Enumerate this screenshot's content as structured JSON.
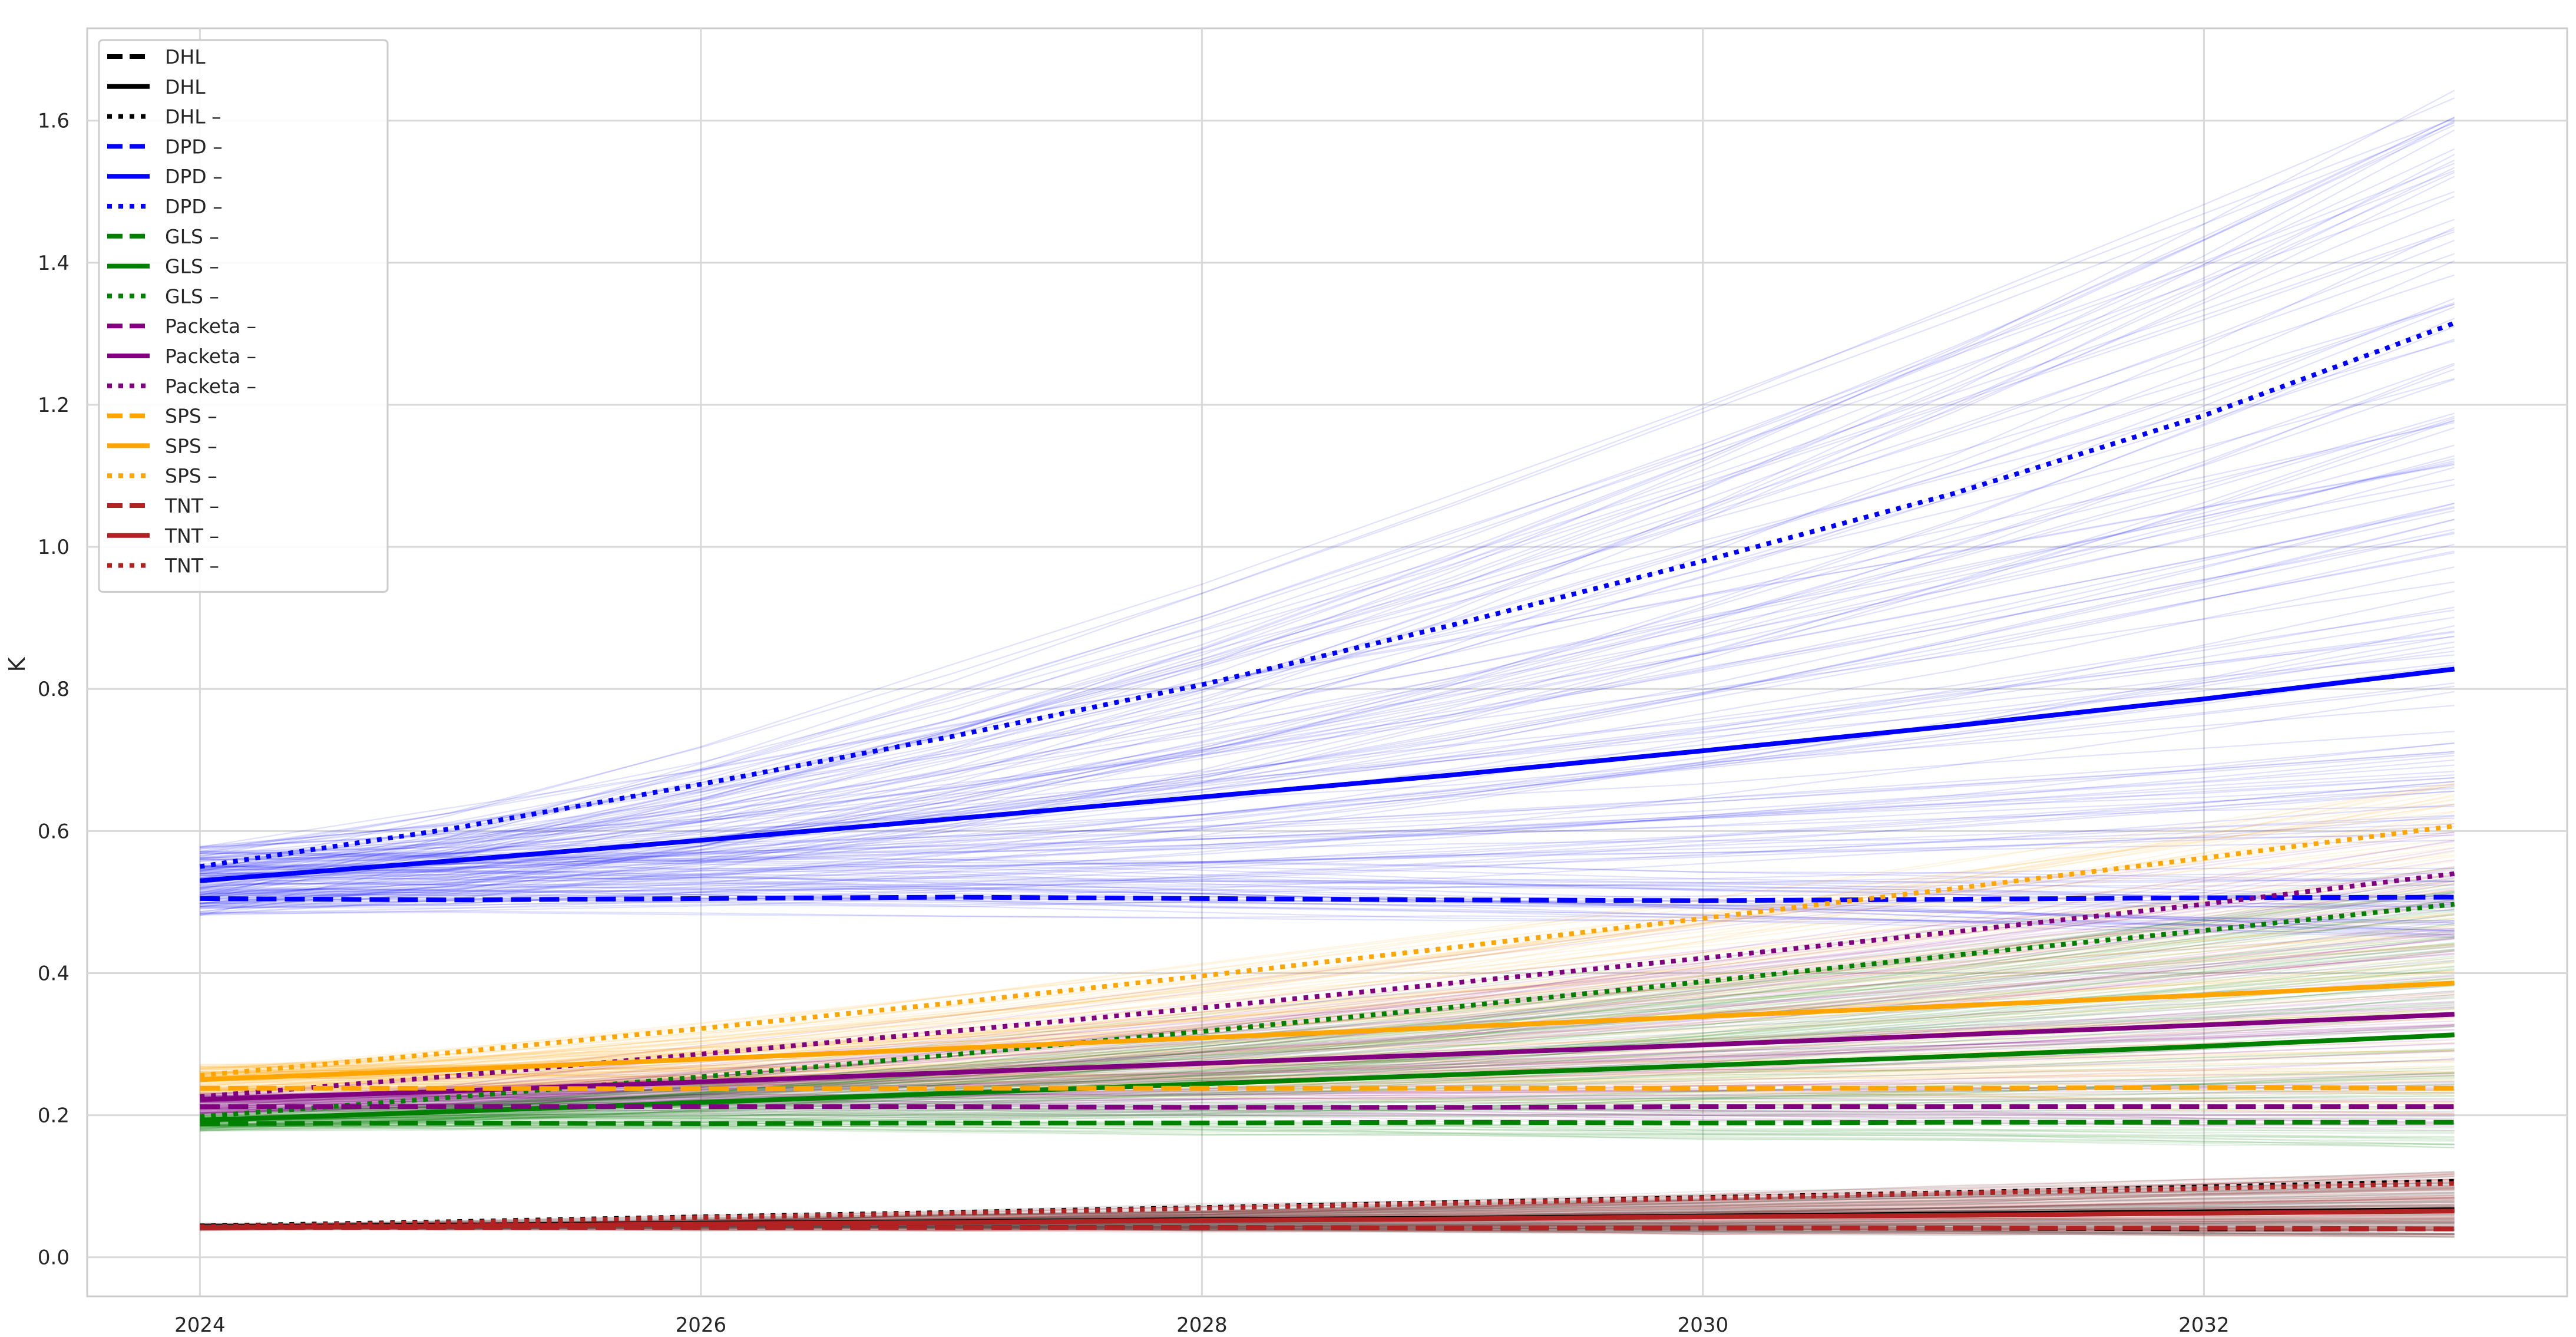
{
  "chart_data": {
    "type": "line",
    "title": "",
    "xlabel": "",
    "ylabel": "K",
    "xlim": [
      2023.55,
      2033.45
    ],
    "ylim": [
      -0.055,
      1.73
    ],
    "x_ticks": [
      2024,
      2026,
      2028,
      2030,
      2032
    ],
    "y_ticks": [
      0.0,
      0.2,
      0.4,
      0.6,
      0.8,
      1.0,
      1.2,
      1.4,
      1.6
    ],
    "grid": true,
    "legend_placement": "upper-left",
    "x": [
      2024,
      2025,
      2026,
      2027,
      2028,
      2029,
      2030,
      2031,
      2032,
      2033
    ],
    "series": [
      {
        "name": "DHL",
        "color": "#000000",
        "style": "dashed",
        "values": [
          0.043,
          0.043,
          0.042,
          0.042,
          0.042,
          0.041,
          0.041,
          0.041,
          0.04,
          0.04
        ]
      },
      {
        "name": "DHL",
        "color": "#000000",
        "style": "solid",
        "values": [
          0.043,
          0.045,
          0.048,
          0.05,
          0.053,
          0.055,
          0.058,
          0.061,
          0.064,
          0.067
        ]
      },
      {
        "name": "DHL –",
        "color": "#000000",
        "style": "dotted",
        "values": [
          0.044,
          0.05,
          0.057,
          0.063,
          0.07,
          0.077,
          0.084,
          0.091,
          0.099,
          0.107
        ]
      },
      {
        "name": "DPD –",
        "color": "#0000ff",
        "style": "dashed",
        "values": [
          0.505,
          0.503,
          0.505,
          0.507,
          0.505,
          0.503,
          0.502,
          0.504,
          0.506,
          0.507
        ]
      },
      {
        "name": "DPD –",
        "color": "#0000ff",
        "style": "solid",
        "values": [
          0.53,
          0.558,
          0.587,
          0.617,
          0.648,
          0.679,
          0.713,
          0.748,
          0.786,
          0.828
        ]
      },
      {
        "name": "DPD –",
        "color": "#0000ff",
        "style": "dotted",
        "values": [
          0.55,
          0.603,
          0.666,
          0.733,
          0.806,
          0.89,
          0.98,
          1.075,
          1.185,
          1.315
        ]
      },
      {
        "name": "GLS –",
        "color": "#008000",
        "style": "dashed",
        "values": [
          0.188,
          0.189,
          0.188,
          0.189,
          0.189,
          0.19,
          0.189,
          0.19,
          0.19,
          0.19
        ]
      },
      {
        "name": "GLS –",
        "color": "#008000",
        "style": "solid",
        "values": [
          0.193,
          0.205,
          0.218,
          0.231,
          0.244,
          0.257,
          0.27,
          0.283,
          0.297,
          0.313
        ]
      },
      {
        "name": "GLS –",
        "color": "#008000",
        "style": "dotted",
        "values": [
          0.198,
          0.225,
          0.254,
          0.285,
          0.318,
          0.352,
          0.388,
          0.425,
          0.46,
          0.497
        ]
      },
      {
        "name": "Packeta –",
        "color": "#800080",
        "style": "dashed",
        "values": [
          0.212,
          0.212,
          0.212,
          0.212,
          0.211,
          0.211,
          0.212,
          0.212,
          0.212,
          0.212
        ]
      },
      {
        "name": "Packeta –",
        "color": "#800080",
        "style": "solid",
        "values": [
          0.222,
          0.234,
          0.247,
          0.26,
          0.273,
          0.286,
          0.299,
          0.313,
          0.327,
          0.342
        ]
      },
      {
        "name": "Packeta –",
        "color": "#800080",
        "style": "dotted",
        "values": [
          0.226,
          0.255,
          0.286,
          0.318,
          0.351,
          0.386,
          0.421,
          0.458,
          0.497,
          0.54
        ]
      },
      {
        "name": "SPS –",
        "color": "#ffa500",
        "style": "dashed",
        "values": [
          0.238,
          0.238,
          0.237,
          0.238,
          0.238,
          0.238,
          0.238,
          0.238,
          0.239,
          0.238
        ]
      },
      {
        "name": "SPS –",
        "color": "#ffa500",
        "style": "solid",
        "values": [
          0.25,
          0.264,
          0.279,
          0.294,
          0.309,
          0.324,
          0.339,
          0.354,
          0.369,
          0.386
        ]
      },
      {
        "name": "SPS –",
        "color": "#ffa500",
        "style": "dotted",
        "values": [
          0.256,
          0.288,
          0.322,
          0.358,
          0.396,
          0.436,
          0.477,
          0.519,
          0.562,
          0.607
        ]
      },
      {
        "name": "TNT –",
        "color": "#b22222",
        "style": "dashed",
        "values": [
          0.042,
          0.042,
          0.042,
          0.042,
          0.042,
          0.041,
          0.041,
          0.041,
          0.041,
          0.04
        ]
      },
      {
        "name": "TNT –",
        "color": "#b22222",
        "style": "solid",
        "values": [
          0.042,
          0.044,
          0.047,
          0.049,
          0.052,
          0.054,
          0.057,
          0.059,
          0.062,
          0.065
        ]
      },
      {
        "name": "TNT –",
        "color": "#b22222",
        "style": "dotted",
        "values": [
          0.043,
          0.049,
          0.056,
          0.062,
          0.069,
          0.076,
          0.083,
          0.09,
          0.097,
          0.104
        ]
      }
    ],
    "simulation_bands": [
      {
        "carrier": "DPD",
        "color": "#0000ff",
        "start_range": [
          0.48,
          0.58
        ],
        "end_range": [
          0.45,
          1.65
        ]
      },
      {
        "carrier": "SPS",
        "color": "#ffa500",
        "start_range": [
          0.23,
          0.27
        ],
        "end_range": [
          0.2,
          0.68
        ]
      },
      {
        "carrier": "Packeta",
        "color": "#800080",
        "start_range": [
          0.2,
          0.23
        ],
        "end_range": [
          0.18,
          0.6
        ]
      },
      {
        "carrier": "GLS",
        "color": "#008000",
        "start_range": [
          0.18,
          0.2
        ],
        "end_range": [
          0.15,
          0.55
        ]
      },
      {
        "carrier": "TNT",
        "color": "#b22222",
        "start_range": [
          0.04,
          0.045
        ],
        "end_range": [
          0.03,
          0.12
        ]
      },
      {
        "carrier": "DHL",
        "color": "#555555",
        "start_range": [
          0.04,
          0.045
        ],
        "end_range": [
          0.03,
          0.12
        ]
      }
    ]
  }
}
